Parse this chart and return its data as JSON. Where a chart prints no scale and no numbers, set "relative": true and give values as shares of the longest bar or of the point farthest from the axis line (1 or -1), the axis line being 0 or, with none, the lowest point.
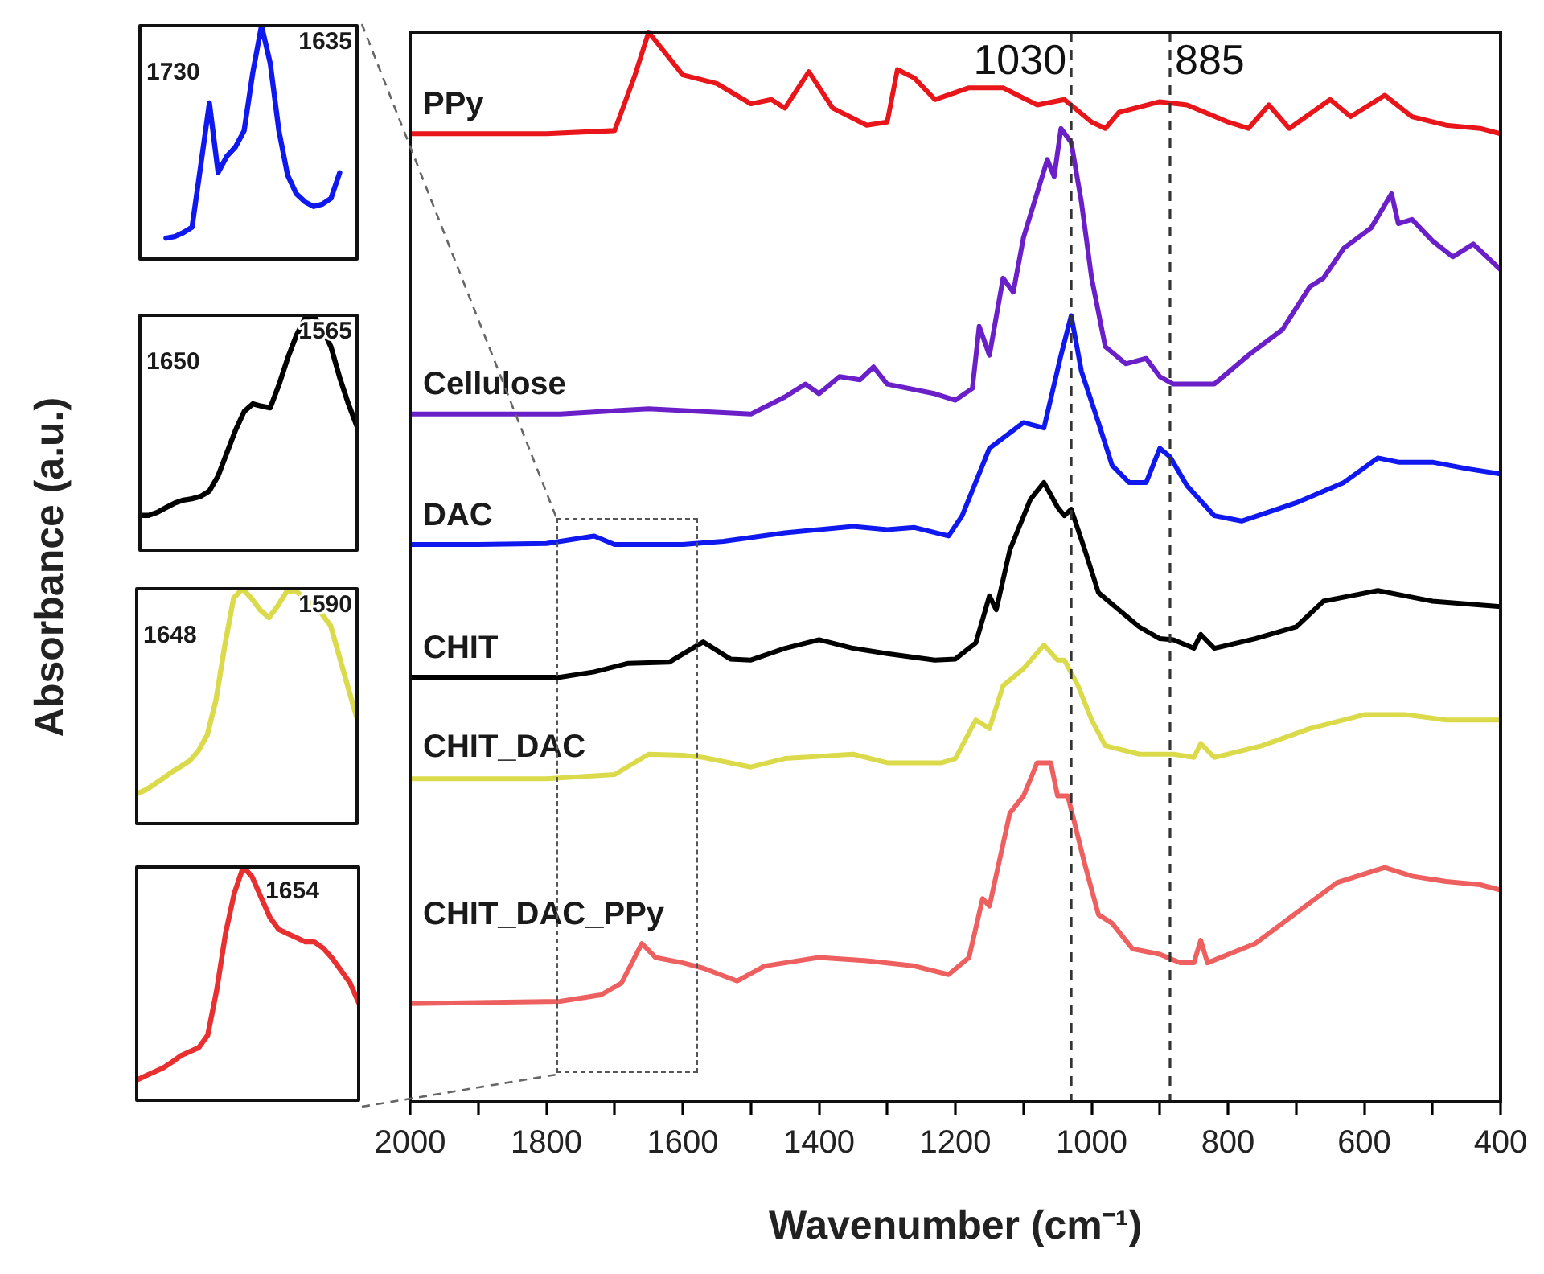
{
  "chart_data": [
    {
      "type": "line",
      "xlabel": "Wavenumber (cm⁻¹)",
      "ylabel": "Absorbance (a.u.)",
      "relative": true,
      "legend": false,
      "grid": false,
      "xlim": [
        2000,
        400
      ],
      "xticks": [
        2000,
        {
          "value": 1900,
          "label": null
        },
        1800,
        {
          "value": 1700,
          "label": null
        },
        1600,
        {
          "value": 1500,
          "label": null
        },
        1400,
        {
          "value": 1300,
          "label": null
        },
        1200,
        {
          "value": 1100,
          "label": null
        },
        1000,
        {
          "value": 900,
          "label": null
        },
        800,
        {
          "value": 700,
          "label": null
        },
        600,
        {
          "value": 500,
          "label": null
        },
        400
      ],
      "ref_lines": [
        {
          "axis": "x",
          "value": 1030,
          "label": "1030",
          "color": "#333333",
          "line_style": "dashed"
        },
        {
          "axis": "x",
          "value": 885,
          "label": "885",
          "color": "#333333",
          "line_style": "dashed"
        }
      ],
      "series": [
        {
          "name": "PPy",
          "color": "#e8161b",
          "x": [
            2000,
            1800,
            1700,
            1670,
            1650,
            1600,
            1550,
            1500,
            1470,
            1450,
            1415,
            1380,
            1330,
            1300,
            1285,
            1260,
            1230,
            1180,
            1130,
            1080,
            1040,
            1000,
            980,
            960,
            900,
            860,
            800,
            770,
            740,
            710,
            650,
            620,
            570,
            530,
            480,
            430,
            400
          ],
          "values": [
            0.905,
            0.905,
            0.908,
            0.96,
            1,
            0.96,
            0.952,
            0.933,
            0.937,
            0.929,
            0.963,
            0.929,
            0.913,
            0.916,
            0.965,
            0.957,
            0.937,
            0.948,
            0.948,
            0.932,
            0.937,
            0.916,
            0.91,
            0.925,
            0.935,
            0.932,
            0.916,
            0.91,
            0.932,
            0.91,
            0.937,
            0.921,
            0.941,
            0.921,
            0.913,
            0.91,
            0.905
          ]
        },
        {
          "name": "Cellulose",
          "color": "#6b1fc9",
          "x": [
            2000,
            1780,
            1650,
            1500,
            1450,
            1420,
            1400,
            1370,
            1340,
            1320,
            1300,
            1230,
            1200,
            1175,
            1165,
            1150,
            1130,
            1115,
            1100,
            1065,
            1055,
            1045,
            1030,
            1015,
            1000,
            980,
            950,
            920,
            900,
            880,
            820,
            770,
            720,
            680,
            660,
            630,
            590,
            560,
            550,
            530,
            500,
            470,
            440,
            400
          ],
          "values": [
            0.643,
            0.643,
            0.648,
            0.643,
            0.659,
            0.671,
            0.662,
            0.678,
            0.675,
            0.687,
            0.671,
            0.662,
            0.656,
            0.667,
            0.725,
            0.698,
            0.77,
            0.757,
            0.808,
            0.881,
            0.865,
            0.91,
            0.897,
            0.841,
            0.77,
            0.706,
            0.69,
            0.695,
            0.678,
            0.671,
            0.671,
            0.698,
            0.722,
            0.762,
            0.77,
            0.798,
            0.817,
            0.849,
            0.821,
            0.825,
            0.805,
            0.79,
            0.802,
            0.778
          ]
        },
        {
          "name": "DAC",
          "color": "#0f18ee",
          "x": [
            2000,
            1900,
            1800,
            1730,
            1700,
            1600,
            1540,
            1450,
            1350,
            1300,
            1260,
            1210,
            1190,
            1150,
            1100,
            1070,
            1045,
            1030,
            1015,
            990,
            970,
            945,
            920,
            900,
            885,
            860,
            820,
            780,
            700,
            630,
            580,
            550,
            500,
            450,
            400
          ],
          "values": [
            0.521,
            0.521,
            0.522,
            0.529,
            0.521,
            0.521,
            0.524,
            0.532,
            0.538,
            0.535,
            0.537,
            0.529,
            0.548,
            0.611,
            0.635,
            0.63,
            0.698,
            0.735,
            0.683,
            0.635,
            0.595,
            0.579,
            0.579,
            0.611,
            0.603,
            0.576,
            0.548,
            0.543,
            0.56,
            0.579,
            0.602,
            0.598,
            0.598,
            0.592,
            0.587
          ]
        },
        {
          "name": "CHIT",
          "color": "#000000",
          "x": [
            2000,
            1780,
            1730,
            1680,
            1620,
            1570,
            1530,
            1500,
            1450,
            1400,
            1350,
            1300,
            1230,
            1200,
            1170,
            1150,
            1140,
            1120,
            1090,
            1070,
            1050,
            1040,
            1030,
            1010,
            990,
            960,
            930,
            900,
            880,
            850,
            840,
            820,
            760,
            700,
            660,
            620,
            580,
            540,
            500,
            400
          ],
          "values": [
            0.397,
            0.397,
            0.402,
            0.41,
            0.411,
            0.43,
            0.414,
            0.413,
            0.424,
            0.432,
            0.424,
            0.419,
            0.413,
            0.414,
            0.429,
            0.473,
            0.46,
            0.516,
            0.563,
            0.579,
            0.556,
            0.548,
            0.554,
            0.516,
            0.476,
            0.46,
            0.444,
            0.433,
            0.432,
            0.424,
            0.437,
            0.424,
            0.433,
            0.444,
            0.468,
            0.473,
            0.478,
            0.473,
            0.468,
            0.463
          ]
        },
        {
          "name": "CHIT_DAC",
          "color": "#dada4a",
          "x": [
            2000,
            1800,
            1700,
            1650,
            1600,
            1570,
            1500,
            1450,
            1350,
            1300,
            1220,
            1200,
            1170,
            1150,
            1130,
            1100,
            1070,
            1050,
            1040,
            1020,
            1000,
            980,
            930,
            880,
            850,
            840,
            820,
            750,
            680,
            600,
            540,
            480,
            400
          ],
          "values": [
            0.302,
            0.302,
            0.306,
            0.325,
            0.324,
            0.322,
            0.313,
            0.321,
            0.325,
            0.317,
            0.317,
            0.321,
            0.357,
            0.349,
            0.389,
            0.405,
            0.427,
            0.413,
            0.413,
            0.389,
            0.357,
            0.333,
            0.325,
            0.325,
            0.322,
            0.335,
            0.322,
            0.333,
            0.349,
            0.362,
            0.362,
            0.357,
            0.357
          ]
        },
        {
          "name": "CHIT_DAC_PPy",
          "color": "#ee6060",
          "x": [
            2000,
            1780,
            1720,
            1690,
            1660,
            1640,
            1600,
            1570,
            1520,
            1480,
            1400,
            1330,
            1260,
            1210,
            1180,
            1160,
            1150,
            1120,
            1100,
            1080,
            1060,
            1050,
            1035,
            1010,
            990,
            970,
            940,
            900,
            870,
            850,
            840,
            830,
            760,
            680,
            640,
            570,
            530,
            480,
            430,
            400
          ],
          "values": [
            0.092,
            0.094,
            0.1,
            0.111,
            0.148,
            0.135,
            0.13,
            0.125,
            0.113,
            0.127,
            0.135,
            0.132,
            0.127,
            0.119,
            0.135,
            0.19,
            0.183,
            0.27,
            0.286,
            0.317,
            0.317,
            0.286,
            0.286,
            0.222,
            0.175,
            0.167,
            0.143,
            0.138,
            0.13,
            0.13,
            0.151,
            0.13,
            0.148,
            0.186,
            0.205,
            0.219,
            0.211,
            0.206,
            0.203,
            0.198
          ]
        }
      ]
    },
    {
      "type": "line",
      "relative": true,
      "legend": false,
      "tick_labels": false,
      "annotations": [
        "1730",
        "1635"
      ],
      "categories": [
        null,
        null,
        null,
        null,
        null,
        null,
        null,
        null,
        null,
        null,
        null,
        null,
        null,
        null,
        null,
        null,
        null,
        null,
        null,
        null,
        null,
        null,
        null,
        null,
        null,
        null
      ],
      "series": [
        {
          "color": "#0f18ee",
          "values": [
            null,
            null,
            null,
            0.089,
            0.096,
            0.113,
            0.136,
            0.4,
            0.669,
            0.371,
            0.44,
            0.48,
            0.55,
            0.8,
            1,
            0.84,
            0.55,
            0.36,
            0.28,
            0.245,
            0.225,
            0.235,
            0.26,
            0.37,
            null,
            null
          ]
        }
      ]
    },
    {
      "type": "line",
      "relative": true,
      "legend": false,
      "tick_labels": false,
      "annotations": [
        "1650",
        "1565"
      ],
      "categories": [
        null,
        null,
        null,
        null,
        null,
        null,
        null,
        null,
        null,
        null,
        null,
        null,
        null,
        null,
        null,
        null,
        null,
        null,
        null,
        null,
        null,
        null,
        null,
        null,
        null,
        null
      ],
      "series": [
        {
          "color": "#000000",
          "values": [
            0.148,
            0.148,
            0.161,
            0.181,
            0.2,
            0.213,
            0.219,
            0.229,
            0.252,
            0.316,
            0.413,
            0.51,
            0.59,
            0.623,
            0.613,
            0.606,
            0.703,
            0.816,
            0.913,
            0.987,
            1,
            0.945,
            0.865,
            0.735,
            0.623,
            0.526
          ]
        }
      ]
    },
    {
      "type": "line",
      "relative": true,
      "legend": false,
      "tick_labels": false,
      "annotations": [
        "1648",
        "1590"
      ],
      "categories": [
        null,
        null,
        null,
        null,
        null,
        null,
        null,
        null,
        null,
        null,
        null,
        null,
        null,
        null,
        null,
        null,
        null,
        null,
        null,
        null,
        null,
        null,
        null,
        null,
        null,
        null
      ],
      "series": [
        {
          "color": "#dada4a",
          "values": [
            0.127,
            0.143,
            0.167,
            0.193,
            0.22,
            0.243,
            0.267,
            0.31,
            0.377,
            0.527,
            0.76,
            0.96,
            1,
            0.96,
            0.91,
            0.877,
            0.927,
            0.987,
            0.993,
            0.96,
            0.927,
            0.893,
            0.843,
            0.71,
            0.577,
            0.447
          ]
        }
      ]
    },
    {
      "type": "line",
      "relative": true,
      "legend": false,
      "tick_labels": false,
      "annotations": [
        "1654"
      ],
      "categories": [
        null,
        null,
        null,
        null,
        null,
        null,
        null,
        null,
        null,
        null,
        null,
        null,
        null,
        null,
        null,
        null,
        null,
        null,
        null,
        null,
        null,
        null,
        null,
        null,
        null,
        null
      ],
      "series": [
        {
          "color": "#e83030",
          "values": [
            0.087,
            0.105,
            0.122,
            0.139,
            0.164,
            0.192,
            0.209,
            0.226,
            0.279,
            0.47,
            0.714,
            0.889,
            1,
            0.958,
            0.871,
            0.784,
            0.732,
            0.714,
            0.697,
            0.679,
            0.679,
            0.652,
            0.61,
            0.557,
            0.505,
            0.418
          ]
        }
      ]
    }
  ]
}
